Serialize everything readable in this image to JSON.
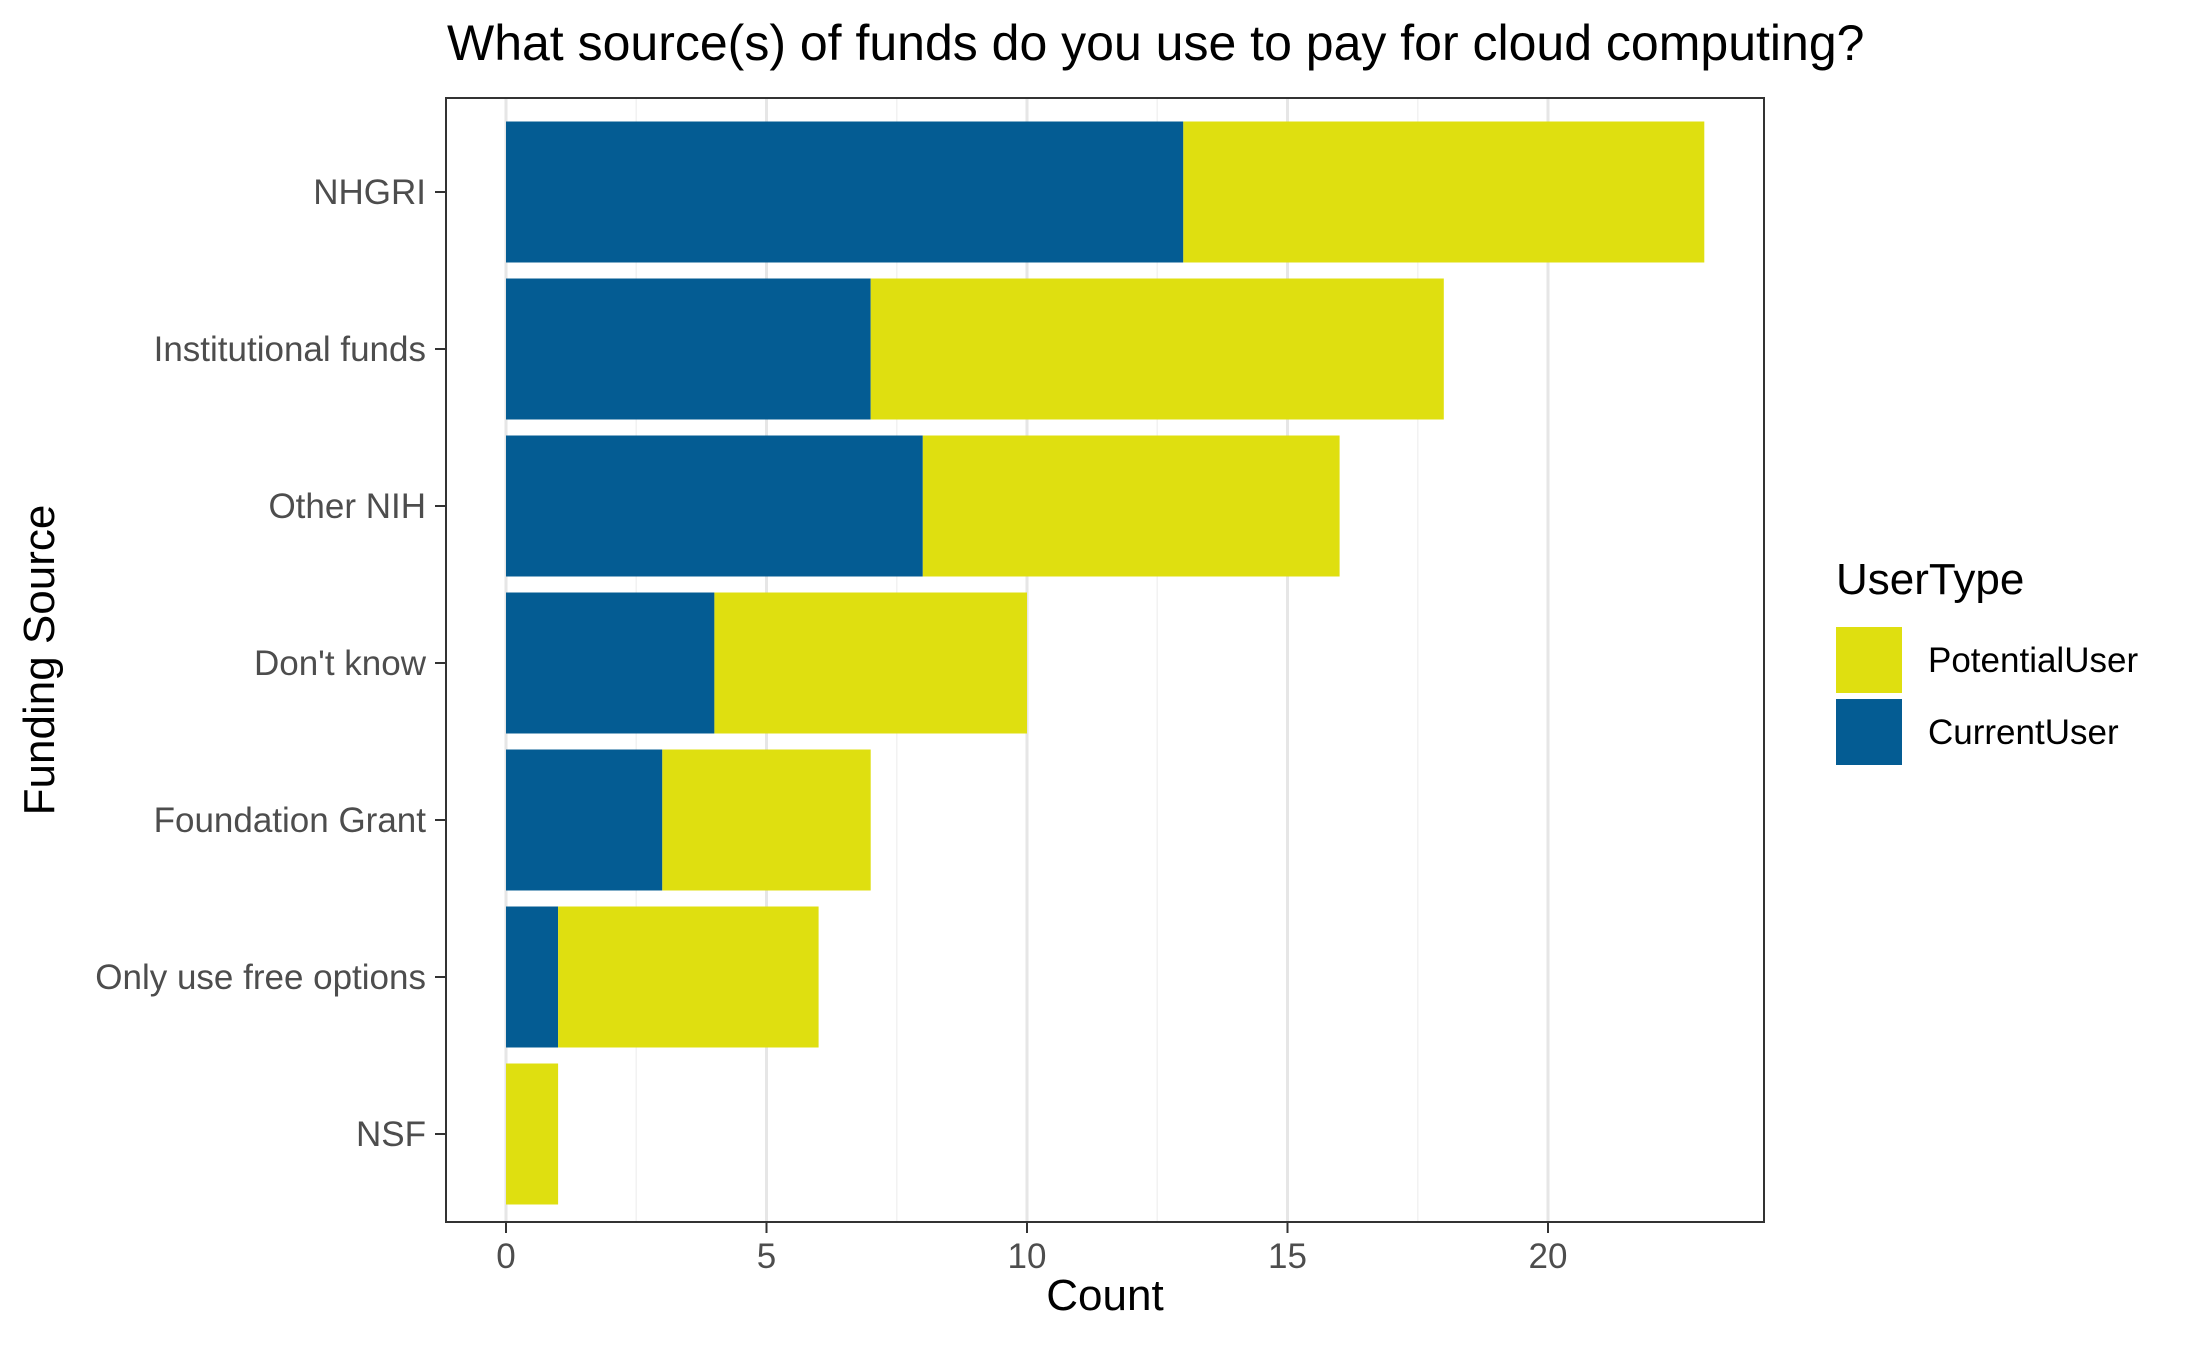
{
  "chart_data": {
    "type": "bar",
    "orientation": "horizontal",
    "stacked": true,
    "title": "What source(s) of funds do you use to pay for cloud computing?",
    "xlabel": "Count",
    "ylabel": "Funding Source",
    "categories": [
      "NHGRI",
      "Institutional funds",
      "Other NIH",
      "Don't know",
      "Foundation Grant",
      "Only use free options",
      "NSF"
    ],
    "series": [
      {
        "name": "CurrentUser",
        "color": "#045c93",
        "values": [
          13,
          7,
          8,
          4,
          3,
          1,
          0
        ]
      },
      {
        "name": "PotentialUser",
        "color": "#dfdf10",
        "values": [
          10,
          11,
          8,
          6,
          4,
          5,
          1
        ]
      }
    ],
    "xlim": [
      -1.15,
      24.15
    ],
    "xticks": [
      0,
      5,
      10,
      15,
      20
    ],
    "grid": true,
    "legend": {
      "title": "UserType",
      "position": "right",
      "entries": [
        {
          "label": "PotentialUser",
          "color": "#dfdf10"
        },
        {
          "label": "CurrentUser",
          "color": "#045c93"
        }
      ]
    }
  }
}
